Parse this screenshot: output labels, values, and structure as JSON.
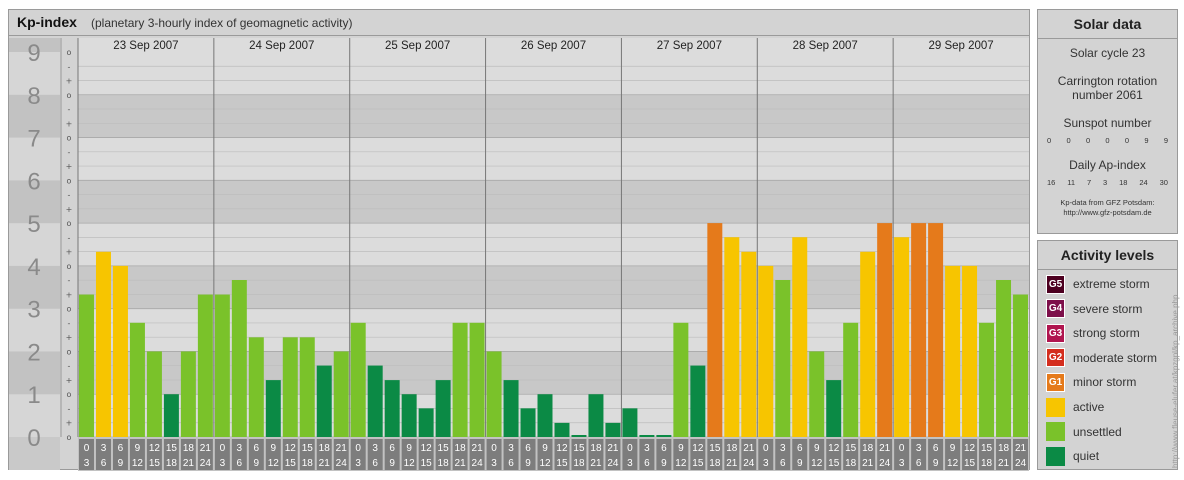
{
  "header": {
    "title": "Kp-index",
    "subtitle": "(planetary 3-hourly index of geomagnetic activity)"
  },
  "chart_data": {
    "type": "bar",
    "title": "Kp-index",
    "subtitle": "(planetary 3-hourly index of geomagnetic activity)",
    "ylim": [
      0,
      9
    ],
    "y_ticks": [
      "0",
      "1",
      "2",
      "3",
      "4",
      "5",
      "6",
      "7",
      "8",
      "9"
    ],
    "y_subticks": [
      "+",
      "o",
      "-"
    ],
    "days": [
      "23 Sep 2007",
      "24 Sep 2007",
      "25 Sep 2007",
      "26 Sep 2007",
      "27 Sep 2007",
      "28 Sep 2007",
      "29 Sep 2007"
    ],
    "intervals_top": [
      "0",
      "3",
      "6",
      "9",
      "12",
      "15",
      "18",
      "21"
    ],
    "intervals_bottom": [
      "3",
      "6",
      "9",
      "12",
      "15",
      "18",
      "21",
      "24"
    ],
    "values": [
      [
        3.33,
        4.33,
        4.0,
        2.67,
        2.0,
        1.0,
        2.0,
        3.33
      ],
      [
        3.33,
        3.67,
        2.33,
        1.33,
        2.33,
        2.33,
        1.67,
        2.0
      ],
      [
        2.67,
        1.67,
        1.33,
        1.0,
        0.67,
        1.33,
        2.67,
        2.67
      ],
      [
        2.0,
        1.33,
        0.67,
        1.0,
        0.33,
        0.0,
        1.0,
        0.33
      ],
      [
        0.67,
        0.0,
        0.0,
        2.67,
        1.67,
        5.0,
        4.67,
        4.33
      ],
      [
        4.0,
        3.67,
        4.67,
        2.0,
        1.33,
        2.67,
        4.33,
        5.0
      ],
      [
        4.67,
        5.0,
        5.0,
        4.0,
        4.0,
        2.67,
        3.67,
        3.33
      ]
    ],
    "colors": {
      "quiet": "#0b8a45",
      "unsettled": "#7ac22a",
      "active": "#f7c500",
      "minor_storm": "#e57a1b",
      "moderate_storm": "#d42e1e",
      "strong_storm": "#b0154f",
      "severe_storm": "#7d0f4a",
      "extreme_storm": "#4d0020"
    }
  },
  "solar_data": {
    "heading": "Solar data",
    "solar_cycle": "Solar cycle 23",
    "carrington_line1": "Carrington rotation",
    "carrington_line2": "number 2061",
    "sunspot_heading": "Sunspot number",
    "sunspot_values": [
      "0",
      "0",
      "0",
      "0",
      "0",
      "9",
      "9"
    ],
    "ap_heading": "Daily Ap-index",
    "ap_values": [
      "16",
      "11",
      "7",
      "3",
      "18",
      "24",
      "30"
    ],
    "credit_line1": "Kp-data from GFZ Potsdam:",
    "credit_line2": "http://www.gfz-potsdam.de"
  },
  "activity_levels": {
    "heading": "Activity levels",
    "items": [
      {
        "badge": "G5",
        "label": "extreme storm",
        "color": "#4d0020"
      },
      {
        "badge": "G4",
        "label": "severe storm",
        "color": "#7d0f4a"
      },
      {
        "badge": "G3",
        "label": "strong storm",
        "color": "#b0154f"
      },
      {
        "badge": "G2",
        "label": "moderate storm",
        "color": "#d42e1e"
      },
      {
        "badge": "G1",
        "label": "minor storm",
        "color": "#e57a1b"
      },
      {
        "badge": "",
        "label": "active",
        "color": "#f7c500"
      },
      {
        "badge": "",
        "label": "unsettled",
        "color": "#7ac22a"
      },
      {
        "badge": "",
        "label": "quiet",
        "color": "#0b8a45"
      }
    ]
  },
  "watermark": "http://www.fleuse-elufer.at/kpzgpl/kp_archive.php"
}
